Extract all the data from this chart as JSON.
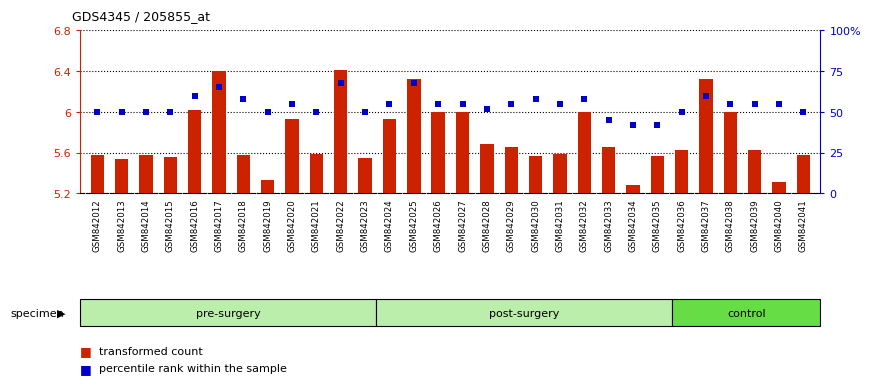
{
  "title": "GDS4345 / 205855_at",
  "samples": [
    "GSM842012",
    "GSM842013",
    "GSM842014",
    "GSM842015",
    "GSM842016",
    "GSM842017",
    "GSM842018",
    "GSM842019",
    "GSM842020",
    "GSM842021",
    "GSM842022",
    "GSM842023",
    "GSM842024",
    "GSM842025",
    "GSM842026",
    "GSM842027",
    "GSM842028",
    "GSM842029",
    "GSM842030",
    "GSM842031",
    "GSM842032",
    "GSM842033",
    "GSM842034",
    "GSM842035",
    "GSM842036",
    "GSM842037",
    "GSM842038",
    "GSM842039",
    "GSM842040",
    "GSM842041"
  ],
  "red_values": [
    5.58,
    5.54,
    5.58,
    5.56,
    6.02,
    6.4,
    5.58,
    5.33,
    5.93,
    5.59,
    6.41,
    5.55,
    5.93,
    6.32,
    6.0,
    6.0,
    5.68,
    5.65,
    5.57,
    5.59,
    6.0,
    5.65,
    5.28,
    5.57,
    5.63,
    6.32,
    6.0,
    5.63,
    5.31,
    5.58
  ],
  "blue_values": [
    50,
    50,
    50,
    50,
    60,
    65,
    58,
    50,
    55,
    50,
    68,
    50,
    55,
    68,
    55,
    55,
    52,
    55,
    58,
    55,
    58,
    45,
    42,
    42,
    50,
    60,
    55,
    55,
    55,
    50
  ],
  "ylim_left": [
    5.2,
    6.8
  ],
  "ylim_right": [
    0,
    100
  ],
  "yticks_left": [
    5.2,
    5.6,
    6.0,
    6.4,
    6.8
  ],
  "ytick_labels_left": [
    "5.2",
    "5.6",
    "6",
    "6.4",
    "6.8"
  ],
  "yticks_right": [
    0,
    25,
    50,
    75,
    100
  ],
  "ytick_labels_right": [
    "0",
    "25",
    "50",
    "75",
    "100%"
  ],
  "bar_color": "#CC2200",
  "dot_color": "#0000CC",
  "bar_bottom": 5.2,
  "xlabel_color": "#CC2200",
  "ylabel_right_color": "#0000CC",
  "groups": [
    {
      "label": "pre-surgery",
      "start": 0,
      "end": 12,
      "color": "#BBEEAA"
    },
    {
      "label": "post-surgery",
      "start": 12,
      "end": 24,
      "color": "#BBEEAA"
    },
    {
      "label": "control",
      "start": 24,
      "end": 30,
      "color": "#66DD44"
    }
  ],
  "xtick_bg": "#DDDDDD",
  "specimen_label": "specimen"
}
